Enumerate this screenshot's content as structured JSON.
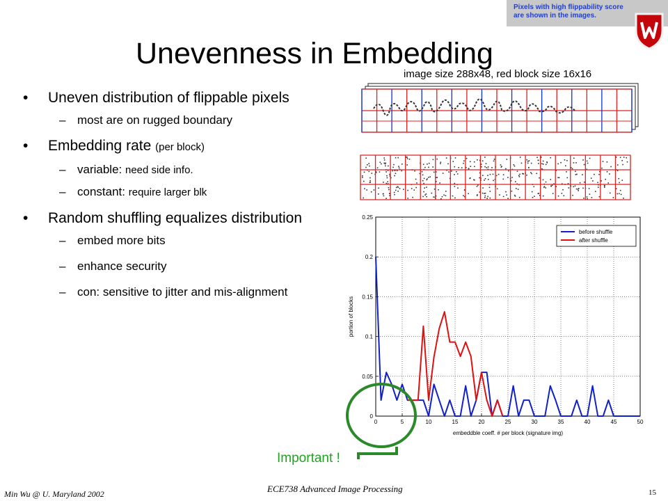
{
  "note": {
    "line1": "Pixels with high flippability score",
    "line2": "are shown in the images."
  },
  "title": "Unevenness in Embedding",
  "image_caption": "image size 288x48, red block size 16x16",
  "bullets": [
    {
      "text": "Uneven distribution of flippable pixels",
      "subs": [
        {
          "text": "most are on rugged boundary",
          "extra": ""
        }
      ]
    },
    {
      "text": "Embedding rate",
      "extra": "(per block)",
      "subs": [
        {
          "text": "variable:",
          "extra": "need side info."
        },
        {
          "text": "constant:",
          "extra": "require larger blk"
        }
      ]
    },
    {
      "text": "Random shuffling equalizes distribution",
      "subs": [
        {
          "text": "embed more bits",
          "extra": ""
        },
        {
          "text": "enhance security",
          "extra": ""
        },
        {
          "text": "con: sensitive to jitter and mis-alignment",
          "extra": ""
        }
      ]
    }
  ],
  "chart_data": {
    "type": "line",
    "xlabel": "embeddble coeff. # per block (signature img)",
    "ylabel": "portion of blocks",
    "xlim": [
      0,
      50
    ],
    "ylim": [
      0,
      0.25
    ],
    "xticks": [
      0,
      5,
      10,
      15,
      20,
      25,
      30,
      35,
      40,
      45,
      50
    ],
    "yticks": [
      0,
      0.05,
      0.1,
      0.15,
      0.2,
      0.25
    ],
    "grid": true,
    "legend_position": "top-right",
    "series": [
      {
        "name": "before shuffle",
        "color": "#1020c8",
        "x": [
          0,
          1,
          2,
          3,
          4,
          5,
          6,
          7,
          8,
          9,
          10,
          11,
          12,
          13,
          14,
          15,
          16,
          17,
          18,
          19,
          20,
          21,
          22,
          23,
          24,
          25,
          26,
          27,
          28,
          29,
          30,
          31,
          32,
          33,
          34,
          35,
          36,
          37,
          38,
          39,
          40,
          41,
          42,
          43,
          44,
          45,
          46,
          47,
          48,
          49,
          50
        ],
        "y": [
          0.2,
          0.02,
          0.055,
          0.04,
          0.02,
          0.04,
          0.02,
          0.02,
          0.02,
          0.02,
          0.0,
          0.04,
          0.02,
          0.0,
          0.02,
          0.0,
          0.0,
          0.038,
          0.0,
          0.02,
          0.055,
          0.055,
          0.0,
          0.02,
          0.0,
          0.0,
          0.038,
          0.0,
          0.02,
          0.02,
          0.0,
          0.0,
          0.0,
          0.038,
          0.02,
          0.0,
          0.0,
          0.0,
          0.02,
          0.0,
          0.0,
          0.038,
          0.0,
          0.0,
          0.02,
          0.0,
          0.0,
          0.0,
          0.0,
          0.0,
          0.0
        ]
      },
      {
        "name": "after shuffle",
        "color": "#e01010",
        "x": [
          6,
          7,
          8,
          9,
          10,
          11,
          12,
          13,
          14,
          15,
          16,
          17,
          18,
          19,
          20,
          21,
          22,
          23,
          24
        ],
        "y": [
          0.02,
          0.02,
          0.02,
          0.113,
          0.02,
          0.074,
          0.11,
          0.131,
          0.093,
          0.093,
          0.075,
          0.093,
          0.075,
          0.02,
          0.055,
          0.02,
          0.0,
          0.02,
          0.0
        ]
      }
    ]
  },
  "important_label": "Important !",
  "footer": {
    "left": "Min Wu @ U. Maryland 2002",
    "course": "ECE738 Advanced Image Processing",
    "page": "15"
  }
}
